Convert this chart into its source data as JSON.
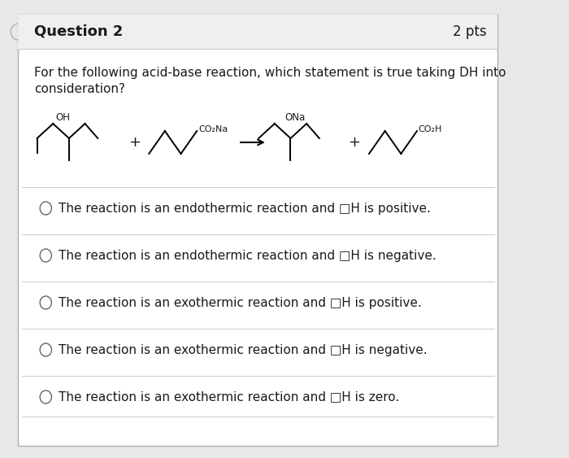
{
  "background_outer": "#e8e8e8",
  "background_card": "#ffffff",
  "background_header": "#efefef",
  "header_title": "Question 2",
  "header_pts": "2 pts",
  "question_line1": "For the following acid-base reaction, which statement is true taking DH into",
  "question_line2": "consideration?",
  "choices": [
    "The reaction is an endothermic reaction and □H is positive.",
    "The reaction is an endothermic reaction and □H is negative.",
    "The reaction is an exothermic reaction and □H is positive.",
    "The reaction is an exothermic reaction and □H is negative.",
    "The reaction is an exothermic reaction and □H is zero."
  ],
  "border_color": "#b0b0b0",
  "text_color": "#1a1a1a",
  "header_line_color": "#cccccc",
  "separator_color": "#cccccc",
  "title_fontsize": 13,
  "pts_fontsize": 12,
  "question_fontsize": 11,
  "choice_fontsize": 11
}
